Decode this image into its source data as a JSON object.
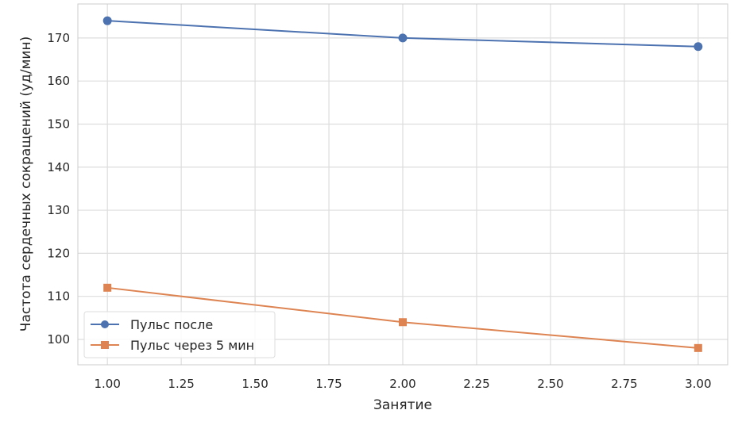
{
  "chart_data": {
    "type": "line",
    "title": "",
    "xlabel": "Занятие",
    "ylabel": "Частота сердечных сокращений (уд/мин)",
    "xlim": [
      0.9,
      3.1
    ],
    "ylim": [
      94.1,
      177.9
    ],
    "x": [
      1,
      2,
      3
    ],
    "xticks": [
      "1.00",
      "1.25",
      "1.50",
      "1.75",
      "2.00",
      "2.25",
      "2.50",
      "2.75",
      "3.00"
    ],
    "xtick_values": [
      1.0,
      1.25,
      1.5,
      1.75,
      2.0,
      2.25,
      2.5,
      2.75,
      3.0
    ],
    "yticks": [
      "100",
      "110",
      "120",
      "130",
      "140",
      "150",
      "160",
      "170"
    ],
    "ytick_values": [
      100,
      110,
      120,
      130,
      140,
      150,
      160,
      170
    ],
    "grid": true,
    "legend_position": "lower-left",
    "series": [
      {
        "name": "Пульс после",
        "values": [
          174,
          170,
          168
        ],
        "color": "#4c72b0",
        "marker": "circle"
      },
      {
        "name": "Пульс через 5 мин",
        "values": [
          112,
          104,
          98
        ],
        "color": "#dd8452",
        "marker": "square"
      }
    ]
  }
}
